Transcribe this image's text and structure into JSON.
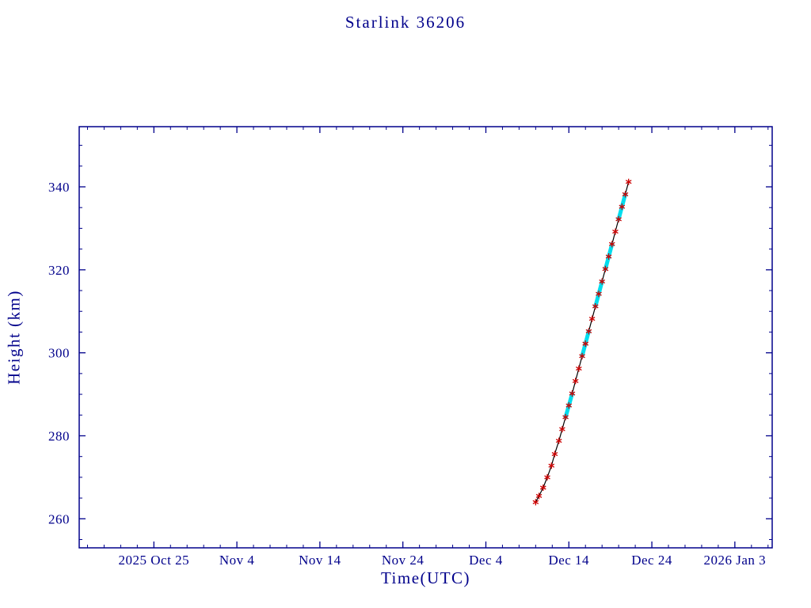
{
  "chart_data": {
    "type": "line",
    "title": "Starlink 36206",
    "xlabel": "Time(UTC)",
    "ylabel": "Height (km)",
    "colors": {
      "axis": "#00008B",
      "line": "#000000",
      "marker": "#CC0000",
      "highlight": "#00DDEE",
      "background": "#FFFFFF"
    },
    "x_axis": {
      "span_days": 83.5,
      "minor_step_days": 2,
      "ticks": [
        {
          "day": 9,
          "label": "2025 Oct 25"
        },
        {
          "day": 19,
          "label": "Nov 4"
        },
        {
          "day": 29,
          "label": "Nov 14"
        },
        {
          "day": 39,
          "label": "Nov 24"
        },
        {
          "day": 49,
          "label": "Dec 4"
        },
        {
          "day": 59,
          "label": "Dec 14"
        },
        {
          "day": 69,
          "label": "Dec 24"
        },
        {
          "day": 79,
          "label": "2026 Jan 3"
        }
      ]
    },
    "y_axis": {
      "min": 253,
      "max": 354.5,
      "minor_step_km": 5,
      "ticks": [
        260,
        280,
        300,
        320,
        340
      ]
    },
    "series": [
      {
        "name": "height",
        "points": [
          [
            55.0,
            264.0
          ],
          [
            55.4,
            265.5
          ],
          [
            55.9,
            267.5
          ],
          [
            56.4,
            270.0
          ],
          [
            56.9,
            272.8
          ],
          [
            57.3,
            275.6
          ],
          [
            57.8,
            278.8
          ],
          [
            58.2,
            281.6
          ],
          [
            58.6,
            284.5
          ],
          [
            59.0,
            287.3
          ],
          [
            59.4,
            290.2
          ],
          [
            59.8,
            293.2
          ],
          [
            60.2,
            296.2
          ],
          [
            60.6,
            299.2
          ],
          [
            61.0,
            302.2
          ],
          [
            61.4,
            305.2
          ],
          [
            61.8,
            308.2
          ],
          [
            62.2,
            311.2
          ],
          [
            62.6,
            314.2
          ],
          [
            63.0,
            317.2
          ],
          [
            63.4,
            320.2
          ],
          [
            63.8,
            323.2
          ],
          [
            64.2,
            326.2
          ],
          [
            64.6,
            329.2
          ],
          [
            65.0,
            332.2
          ],
          [
            65.4,
            335.2
          ],
          [
            65.8,
            338.2
          ],
          [
            66.2,
            341.2
          ]
        ]
      }
    ],
    "highlight_segments": [
      [
        8,
        10
      ],
      [
        13,
        15
      ],
      [
        17,
        19
      ],
      [
        20,
        22
      ],
      [
        24,
        26
      ]
    ],
    "legend": "none",
    "grid": "off"
  }
}
